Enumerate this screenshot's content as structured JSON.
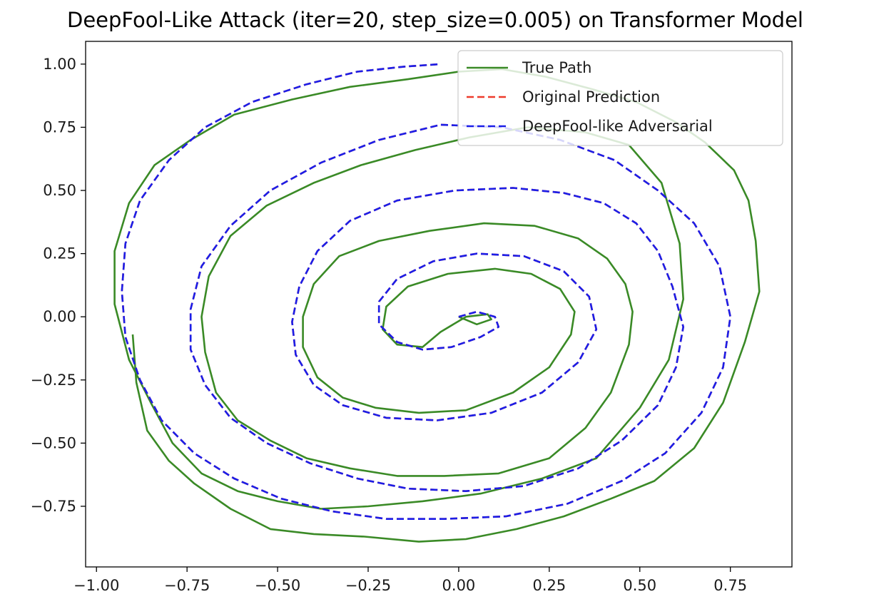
{
  "chart_data": {
    "type": "line",
    "title": "DeepFool-Like Attack (iter=20, step_size=0.005) on Transformer Model",
    "xlabel": "",
    "ylabel": "",
    "xlim": [
      -1.03,
      0.92
    ],
    "ylim": [
      -0.99,
      1.09
    ],
    "x_ticks": [
      -1.0,
      -0.75,
      -0.5,
      -0.25,
      0.0,
      0.25,
      0.5,
      0.75
    ],
    "x_tick_labels": [
      "−1.00",
      "−0.75",
      "−0.50",
      "−0.25",
      "0.00",
      "0.25",
      "0.50",
      "0.75"
    ],
    "y_ticks": [
      1.0,
      0.75,
      0.5,
      0.25,
      0.0,
      -0.25,
      -0.5,
      -0.75
    ],
    "y_tick_labels": [
      "1.00",
      "0.75",
      "0.50",
      "0.25",
      "0.00",
      "−0.25",
      "−0.50",
      "−0.75"
    ],
    "grid": false,
    "legend_position": "top-right",
    "series": [
      {
        "name": "True Path",
        "color": "#3a8a26",
        "dash": "solid",
        "x": [
          0.0,
          0.05,
          0.09,
          0.08,
          0.02,
          -0.05,
          -0.1,
          -0.17,
          -0.21,
          -0.2,
          -0.14,
          -0.03,
          0.1,
          0.2,
          0.28,
          0.32,
          0.31,
          0.25,
          0.15,
          0.02,
          -0.11,
          -0.23,
          -0.32,
          -0.39,
          -0.43,
          -0.43,
          -0.4,
          -0.33,
          -0.22,
          -0.08,
          0.07,
          0.21,
          0.33,
          0.41,
          0.46,
          0.48,
          0.47,
          0.42,
          0.35,
          0.25,
          0.11,
          -0.04,
          -0.17,
          -0.3,
          -0.42,
          -0.52,
          -0.61,
          -0.67,
          -0.7,
          -0.71,
          -0.69,
          -0.63,
          -0.53,
          -0.4,
          -0.27,
          -0.12,
          0.03,
          0.19,
          0.35,
          0.47,
          0.56,
          0.61,
          0.62,
          0.58,
          0.5,
          0.38,
          0.23,
          0.06,
          -0.1,
          -0.25,
          -0.38,
          -0.5,
          -0.61,
          -0.71,
          -0.79,
          -0.85,
          -0.91,
          -0.95,
          -0.95,
          -0.91,
          -0.84,
          -0.74,
          -0.62,
          -0.46,
          -0.3,
          -0.14,
          0.0,
          0.12,
          0.24,
          0.37,
          0.49,
          0.6,
          0.68,
          0.76,
          0.8,
          0.82,
          0.83,
          0.79,
          0.73,
          0.65,
          0.54,
          0.42,
          0.29,
          0.16,
          0.02,
          -0.11,
          -0.26,
          -0.4,
          -0.52,
          -0.63,
          -0.73,
          -0.8,
          -0.86,
          -0.89,
          -0.9
        ],
        "y": [
          0.0,
          -0.03,
          -0.01,
          0.01,
          0.0,
          -0.06,
          -0.12,
          -0.11,
          -0.05,
          0.04,
          0.12,
          0.17,
          0.19,
          0.17,
          0.11,
          0.02,
          -0.07,
          -0.2,
          -0.3,
          -0.37,
          -0.38,
          -0.36,
          -0.32,
          -0.24,
          -0.12,
          0.0,
          0.13,
          0.24,
          0.3,
          0.34,
          0.37,
          0.36,
          0.31,
          0.23,
          0.13,
          0.02,
          -0.11,
          -0.3,
          -0.44,
          -0.56,
          -0.62,
          -0.63,
          -0.63,
          -0.6,
          -0.56,
          -0.49,
          -0.41,
          -0.3,
          -0.14,
          0.0,
          0.16,
          0.32,
          0.44,
          0.53,
          0.6,
          0.66,
          0.71,
          0.75,
          0.73,
          0.68,
          0.53,
          0.29,
          0.07,
          -0.17,
          -0.36,
          -0.56,
          -0.64,
          -0.7,
          -0.73,
          -0.75,
          -0.76,
          -0.73,
          -0.69,
          -0.62,
          -0.5,
          -0.34,
          -0.17,
          0.05,
          0.26,
          0.45,
          0.6,
          0.7,
          0.8,
          0.86,
          0.91,
          0.94,
          0.97,
          0.98,
          0.95,
          0.9,
          0.85,
          0.77,
          0.69,
          0.58,
          0.46,
          0.3,
          0.1,
          -0.1,
          -0.34,
          -0.52,
          -0.65,
          -0.72,
          -0.79,
          -0.84,
          -0.88,
          -0.89,
          -0.87,
          -0.86,
          -0.84,
          -0.76,
          -0.66,
          -0.57,
          -0.45,
          -0.26,
          -0.07
        ]
      },
      {
        "name": "Original Prediction",
        "color": "#ee3b2b",
        "dash": "dashed",
        "x": [
          0.0,
          0.05,
          0.1,
          0.11,
          0.06,
          -0.02,
          -0.1,
          -0.17,
          -0.22,
          -0.22,
          -0.17,
          -0.07,
          0.05,
          0.18,
          0.29,
          0.36,
          0.38,
          0.33,
          0.23,
          0.09,
          -0.06,
          -0.2,
          -0.32,
          -0.4,
          -0.45,
          -0.46,
          -0.44,
          -0.39,
          -0.3,
          -0.17,
          -0.01,
          0.15,
          0.29,
          0.4,
          0.49,
          0.55,
          0.59,
          0.62,
          0.6,
          0.55,
          0.45,
          0.33,
          0.18,
          0.02,
          -0.14,
          -0.28,
          -0.41,
          -0.53,
          -0.63,
          -0.7,
          -0.74,
          -0.74,
          -0.71,
          -0.63,
          -0.52,
          -0.38,
          -0.22,
          -0.05,
          0.12,
          0.28,
          0.43,
          0.55,
          0.65,
          0.72,
          0.75,
          0.73,
          0.67,
          0.57,
          0.45,
          0.3,
          0.13,
          -0.04,
          -0.2,
          -0.35,
          -0.49,
          -0.62,
          -0.73,
          -0.82,
          -0.88,
          -0.92,
          -0.93,
          -0.92,
          -0.88,
          -0.8,
          -0.7,
          -0.57,
          -0.42,
          -0.28,
          -0.15,
          -0.05
        ],
        "y": [
          0.0,
          0.02,
          0.0,
          -0.04,
          -0.08,
          -0.12,
          -0.13,
          -0.1,
          -0.03,
          0.06,
          0.15,
          0.22,
          0.25,
          0.24,
          0.18,
          0.08,
          -0.05,
          -0.18,
          -0.3,
          -0.38,
          -0.41,
          -0.4,
          -0.35,
          -0.27,
          -0.15,
          -0.02,
          0.12,
          0.26,
          0.38,
          0.46,
          0.5,
          0.51,
          0.49,
          0.45,
          0.37,
          0.26,
          0.12,
          -0.04,
          -0.2,
          -0.35,
          -0.49,
          -0.6,
          -0.67,
          -0.69,
          -0.68,
          -0.64,
          -0.58,
          -0.5,
          -0.4,
          -0.27,
          -0.13,
          0.03,
          0.2,
          0.36,
          0.5,
          0.61,
          0.7,
          0.76,
          0.75,
          0.7,
          0.62,
          0.5,
          0.37,
          0.2,
          0.0,
          -0.2,
          -0.38,
          -0.54,
          -0.65,
          -0.74,
          -0.79,
          -0.8,
          -0.8,
          -0.77,
          -0.72,
          -0.64,
          -0.54,
          -0.41,
          -0.25,
          -0.08,
          0.1,
          0.29,
          0.46,
          0.62,
          0.75,
          0.85,
          0.92,
          0.97,
          0.99,
          1.0
        ]
      },
      {
        "name": "DeepFool-like Adversarial",
        "color": "#1b1ee8",
        "dash": "dashed",
        "x": [
          0.0,
          0.05,
          0.1,
          0.11,
          0.06,
          -0.02,
          -0.1,
          -0.17,
          -0.22,
          -0.22,
          -0.17,
          -0.07,
          0.05,
          0.18,
          0.29,
          0.36,
          0.38,
          0.33,
          0.23,
          0.09,
          -0.06,
          -0.2,
          -0.32,
          -0.4,
          -0.45,
          -0.46,
          -0.44,
          -0.39,
          -0.3,
          -0.17,
          -0.01,
          0.15,
          0.29,
          0.4,
          0.49,
          0.55,
          0.59,
          0.62,
          0.6,
          0.55,
          0.45,
          0.33,
          0.18,
          0.02,
          -0.14,
          -0.28,
          -0.41,
          -0.53,
          -0.63,
          -0.7,
          -0.74,
          -0.74,
          -0.71,
          -0.63,
          -0.52,
          -0.38,
          -0.22,
          -0.05,
          0.12,
          0.28,
          0.43,
          0.55,
          0.65,
          0.72,
          0.75,
          0.73,
          0.67,
          0.57,
          0.45,
          0.3,
          0.13,
          -0.04,
          -0.2,
          -0.35,
          -0.49,
          -0.62,
          -0.73,
          -0.82,
          -0.88,
          -0.92,
          -0.93,
          -0.92,
          -0.88,
          -0.8,
          -0.7,
          -0.57,
          -0.42,
          -0.28,
          -0.15,
          -0.05
        ],
        "y": [
          0.0,
          0.02,
          0.0,
          -0.04,
          -0.08,
          -0.12,
          -0.13,
          -0.1,
          -0.03,
          0.06,
          0.15,
          0.22,
          0.25,
          0.24,
          0.18,
          0.08,
          -0.05,
          -0.18,
          -0.3,
          -0.38,
          -0.41,
          -0.4,
          -0.35,
          -0.27,
          -0.15,
          -0.02,
          0.12,
          0.26,
          0.38,
          0.46,
          0.5,
          0.51,
          0.49,
          0.45,
          0.37,
          0.26,
          0.12,
          -0.04,
          -0.2,
          -0.35,
          -0.49,
          -0.6,
          -0.67,
          -0.69,
          -0.68,
          -0.64,
          -0.58,
          -0.5,
          -0.4,
          -0.27,
          -0.13,
          0.03,
          0.2,
          0.36,
          0.5,
          0.61,
          0.7,
          0.76,
          0.75,
          0.7,
          0.62,
          0.5,
          0.37,
          0.2,
          0.0,
          -0.2,
          -0.38,
          -0.54,
          -0.65,
          -0.74,
          -0.79,
          -0.8,
          -0.8,
          -0.77,
          -0.72,
          -0.64,
          -0.54,
          -0.41,
          -0.25,
          -0.08,
          0.1,
          0.29,
          0.46,
          0.62,
          0.75,
          0.85,
          0.92,
          0.97,
          0.99,
          1.0
        ]
      }
    ]
  }
}
